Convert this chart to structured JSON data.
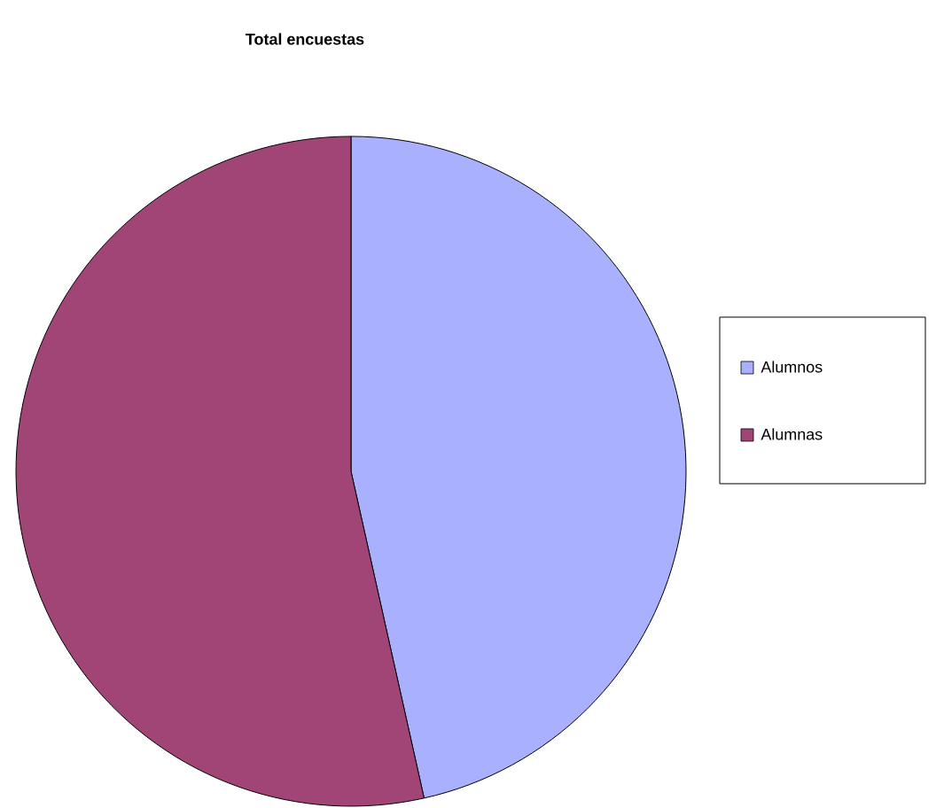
{
  "chart_data": {
    "type": "pie",
    "title": "Total encuestas",
    "categories": [
      "Alumnos",
      "Alumnas"
    ],
    "values": [
      46.5,
      53.5
    ],
    "colors": [
      "#a9b0fe",
      "#a14577"
    ],
    "legend": "right"
  }
}
